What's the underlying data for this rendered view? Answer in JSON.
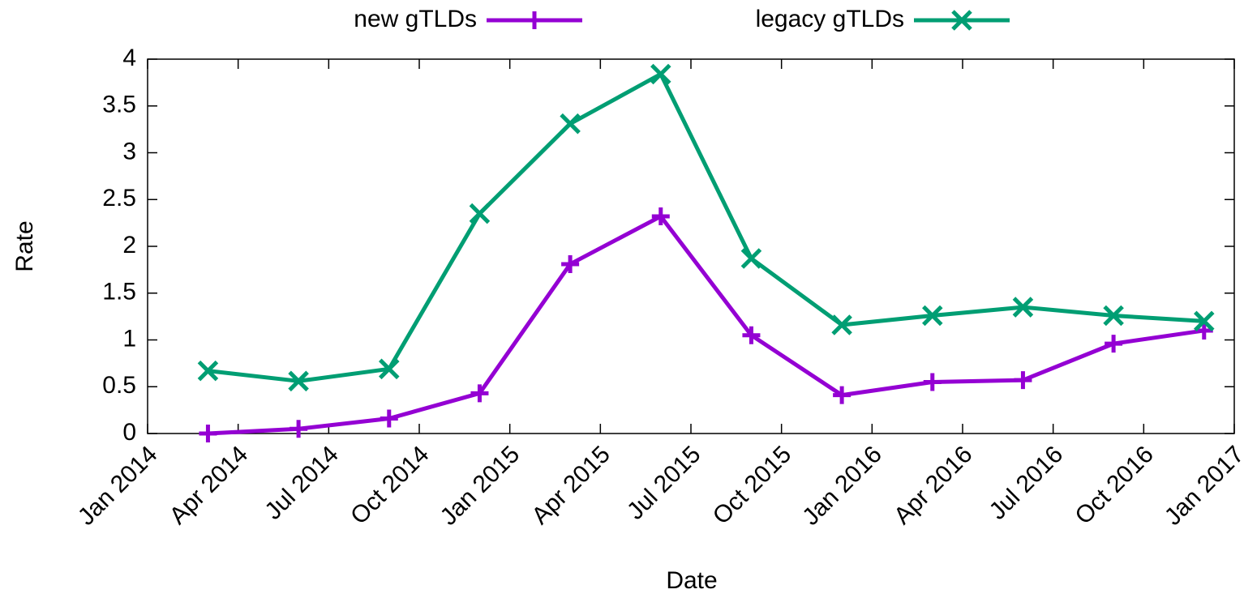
{
  "chart_data": {
    "type": "line",
    "xlabel": "Date",
    "ylabel": "Rate",
    "x": [
      "2014-03",
      "2014-06",
      "2014-09",
      "2014-12",
      "2015-03",
      "2015-06",
      "2015-09",
      "2015-12",
      "2016-03",
      "2016-06",
      "2016-09",
      "2016-12"
    ],
    "series": [
      {
        "name": "new gTLDs",
        "color": "#9400d3",
        "marker": "plus",
        "values": [
          0,
          0.05,
          0.16,
          0.43,
          1.81,
          2.32,
          1.05,
          0.41,
          0.55,
          0.57,
          0.96,
          1.1
        ]
      },
      {
        "name": "legacy gTLDs",
        "color": "#009e73",
        "marker": "cross",
        "values": [
          0.67,
          0.56,
          0.69,
          2.35,
          3.31,
          3.84,
          1.87,
          1.16,
          1.26,
          1.35,
          1.26,
          1.2
        ]
      }
    ],
    "xlim": [
      "2014-01",
      "2017-01"
    ],
    "xticks": [
      {
        "value": "2014-01",
        "label": "Jan 2014"
      },
      {
        "value": "2014-04",
        "label": "Apr 2014"
      },
      {
        "value": "2014-07",
        "label": "Jul 2014"
      },
      {
        "value": "2014-10",
        "label": "Oct 2014"
      },
      {
        "value": "2015-01",
        "label": "Jan 2015"
      },
      {
        "value": "2015-04",
        "label": "Apr 2015"
      },
      {
        "value": "2015-07",
        "label": "Jul 2015"
      },
      {
        "value": "2015-10",
        "label": "Oct 2015"
      },
      {
        "value": "2016-01",
        "label": "Jan 2016"
      },
      {
        "value": "2016-04",
        "label": "Apr 2016"
      },
      {
        "value": "2016-07",
        "label": "Jul 2016"
      },
      {
        "value": "2016-10",
        "label": "Oct 2016"
      },
      {
        "value": "2017-01",
        "label": "Jan 2017"
      }
    ],
    "ylim": [
      0,
      4
    ],
    "yticks": [
      0,
      0.5,
      1,
      1.5,
      2,
      2.5,
      3,
      3.5,
      4
    ],
    "grid": false,
    "legend": "top"
  }
}
